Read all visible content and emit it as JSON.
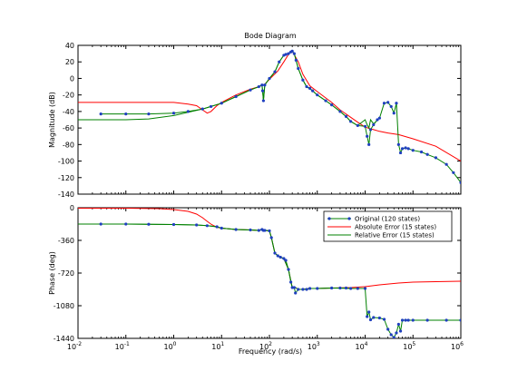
{
  "chart_data": {
    "type": "line",
    "title": "Bode Diagram",
    "xlabel": "Frequency  (rad/s)",
    "x_scale": "log",
    "xlim": [
      0.01,
      1000000
    ],
    "x_ticks": [
      {
        "value": 0.01,
        "base": "10",
        "exp": "-2"
      },
      {
        "value": 0.1,
        "base": "10",
        "exp": "-1"
      },
      {
        "value": 1,
        "base": "10",
        "exp": "0"
      },
      {
        "value": 10,
        "base": "10",
        "exp": "1"
      },
      {
        "value": 100,
        "base": "10",
        "exp": "2"
      },
      {
        "value": 1000,
        "base": "10",
        "exp": "3"
      },
      {
        "value": 10000,
        "base": "10",
        "exp": "4"
      },
      {
        "value": 100000,
        "base": "10",
        "exp": "5"
      },
      {
        "value": 1000000,
        "base": "10",
        "exp": "6"
      }
    ],
    "grid": false,
    "legend_position": "top-right (phase panel)",
    "colors": {
      "original": "#1f3fbf",
      "original_line": "#008000",
      "absolute": "#ff0000",
      "relative": "#008000"
    },
    "panels": [
      {
        "ylabel": "Magnitude (dB)",
        "ylim": [
          -140,
          40
        ],
        "y_ticks": [
          "40",
          "20",
          "0",
          "-20",
          "-40",
          "-60",
          "-80",
          "-100",
          "-120",
          "-140"
        ],
        "y_tick_values": [
          40,
          20,
          0,
          -20,
          -40,
          -60,
          -80,
          -100,
          -120,
          -140
        ],
        "series": [
          {
            "name": "Original (120 states)",
            "style": "markers",
            "x": [
              0.03,
              0.1,
              0.3,
              1,
              2,
              4,
              6,
              10,
              20,
              40,
              60,
              70,
              72,
              75,
              80,
              100,
              130,
              160,
              200,
              220,
              250,
              280,
              300,
              330,
              360,
              400,
              500,
              600,
              700,
              800,
              1000,
              1500,
              2000,
              3000,
              4000,
              5000,
              7000,
              10000,
              11000,
              12000,
              13000,
              15000,
              18000,
              20000,
              25000,
              30000,
              35000,
              40000,
              45000,
              50000,
              55000,
              60000,
              70000,
              80000,
              100000,
              150000,
              200000,
              300000,
              500000,
              700000,
              1000000
            ],
            "y": [
              -43,
              -43,
              -43,
              -42,
              -40,
              -37,
              -34,
              -30,
              -22,
              -14,
              -10,
              -8,
              -15,
              -27,
              -8,
              0,
              8,
              20,
              28,
              29,
              30,
              32,
              33,
              30,
              22,
              12,
              -2,
              -10,
              -12,
              -15,
              -20,
              -27,
              -32,
              -40,
              -46,
              -52,
              -57,
              -58,
              -70,
              -80,
              -62,
              -56,
              -50,
              -48,
              -30,
              -29,
              -34,
              -42,
              -30,
              -80,
              -90,
              -85,
              -84,
              -85,
              -87,
              -89,
              -92,
              -96,
              -104,
              -114,
              -126
            ]
          },
          {
            "name": "Absolute Error (15 states)",
            "style": "line",
            "x": [
              0.01,
              0.1,
              1,
              2,
              3,
              4,
              5,
              6,
              8,
              10,
              20,
              40,
              60,
              80,
              100,
              150,
              200,
              250,
              280,
              300,
              400,
              500,
              700,
              1000,
              2000,
              3000,
              5000,
              7000,
              10000,
              15000,
              20000,
              30000,
              50000,
              100000,
              300000,
              1000000
            ],
            "y": [
              -29,
              -29,
              -29,
              -31,
              -33,
              -38,
              -42,
              -40,
              -33,
              -29,
              -20,
              -13,
              -10,
              -7,
              -1,
              9,
              20,
              29,
              32,
              33,
              20,
              5,
              -9,
              -16,
              -29,
              -38,
              -47,
              -53,
              -59,
              -62,
              -64,
              -66,
              -68,
              -73,
              -82,
              -100
            ]
          },
          {
            "name": "Relative Error (15 states)",
            "style": "line",
            "x": [
              0.01,
              0.1,
              0.3,
              1,
              2,
              4,
              6,
              10,
              20,
              40,
              60,
              70,
              72,
              75,
              80,
              100,
              130,
              160,
              200,
              250,
              280,
              300,
              330,
              360,
              400,
              500,
              600,
              800,
              1000,
              1500,
              2000,
              3000,
              4000,
              5000,
              7000,
              10000,
              11000,
              12000,
              13000,
              15000,
              20000
            ],
            "y": [
              -50,
              -50,
              -49,
              -45,
              -41,
              -37,
              -34,
              -30,
              -22,
              -14,
              -10,
              -8,
              -15,
              -27,
              -8,
              0,
              8,
              20,
              28,
              30,
              32,
              33,
              30,
              22,
              12,
              -2,
              -10,
              -15,
              -20,
              -27,
              -32,
              -40,
              -46,
              -52,
              -57,
              -50,
              -56,
              -60,
              -50,
              -55,
              -48
            ]
          }
        ]
      },
      {
        "ylabel": "Phase (deg)",
        "ylim": [
          -1440,
          0
        ],
        "y_ticks": [
          "0",
          "-360",
          "-720",
          "-1080",
          "-1440"
        ],
        "y_tick_values": [
          0,
          -360,
          -720,
          -1080,
          -1440
        ],
        "series": [
          {
            "name": "Original (120 states)",
            "style": "markers",
            "x": [
              0.03,
              0.1,
              0.3,
              1,
              3,
              5,
              8,
              10,
              20,
              40,
              60,
              70,
              75,
              80,
              100,
              110,
              130,
              150,
              170,
              200,
              220,
              250,
              280,
              300,
              330,
              350,
              400,
              500,
              600,
              700,
              1000,
              2000,
              3000,
              4000,
              5000,
              7000,
              10000,
              11000,
              12000,
              13000,
              15000,
              20000,
              25000,
              30000,
              35000,
              40000,
              45000,
              50000,
              55000,
              60000,
              70000,
              80000,
              100000,
              200000,
              500000,
              1000000
            ],
            "y": [
              -180,
              -180,
              -182,
              -185,
              -190,
              -198,
              -210,
              -225,
              -240,
              -245,
              -250,
              -240,
              -250,
              -250,
              -255,
              -330,
              -500,
              -530,
              -545,
              -560,
              -580,
              -680,
              -820,
              -880,
              -880,
              -940,
              -900,
              -900,
              -900,
              -890,
              -890,
              -885,
              -885,
              -885,
              -890,
              -890,
              -890,
              -1200,
              -1150,
              -1235,
              -1210,
              -1215,
              -1230,
              -1340,
              -1400,
              -1430,
              -1380,
              -1285,
              -1360,
              -1240,
              -1240,
              -1240,
              -1240,
              -1240,
              -1240,
              -1240
            ]
          },
          {
            "name": "Absolute Error (15 states)",
            "style": "line",
            "x": [
              0.01,
              0.1,
              0.5,
              1,
              2,
              3,
              4,
              5,
              6,
              7,
              8,
              10,
              20,
              40,
              60,
              70,
              75,
              80,
              100,
              110,
              130,
              150,
              170,
              200,
              250,
              300,
              350,
              400,
              500,
              700,
              1000,
              2000,
              5000,
              10000,
              20000,
              50000,
              100000,
              300000,
              1000000
            ],
            "y": [
              -5,
              -5,
              -10,
              -20,
              -40,
              -70,
              -110,
              -150,
              -180,
              -200,
              -215,
              -225,
              -240,
              -245,
              -250,
              -240,
              -250,
              -250,
              -255,
              -330,
              -500,
              -530,
              -545,
              -560,
              -680,
              -880,
              -880,
              -900,
              -900,
              -890,
              -890,
              -885,
              -880,
              -870,
              -850,
              -830,
              -820,
              -815,
              -810
            ]
          },
          {
            "name": "Relative Error (15 states)",
            "style": "line",
            "x": [
              0.01,
              0.1,
              0.3,
              1,
              3,
              5,
              8,
              10,
              20,
              40,
              60,
              70,
              75,
              80,
              100,
              110,
              130,
              150,
              170,
              200,
              250,
              300,
              350,
              400,
              500,
              700,
              1000,
              2000,
              5000,
              10000
            ],
            "y": [
              -180,
              -180,
              -182,
              -185,
              -190,
              -198,
              -210,
              -225,
              -240,
              -245,
              -250,
              -240,
              -250,
              -250,
              -255,
              -330,
              -500,
              -530,
              -545,
              -560,
              -680,
              -880,
              -880,
              -900,
              -900,
              -890,
              -890,
              -885,
              -890,
              -890
            ]
          }
        ]
      }
    ]
  }
}
